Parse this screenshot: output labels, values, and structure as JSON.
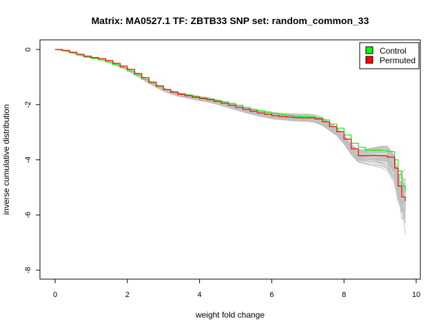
{
  "chart_data": {
    "type": "line",
    "title": "Matrix: MA0527.1 TF: ZBTB33 SNP set: random_common_33",
    "xlabel": "weight fold change",
    "ylabel": "inverse cumulative distribution",
    "xlim": [
      0,
      10
    ],
    "ylim": [
      -8,
      0
    ],
    "x_ticks": [
      0,
      2,
      4,
      6,
      8,
      10
    ],
    "y_ticks": [
      0,
      -2,
      -4,
      -6,
      -8
    ],
    "x_tick_labels": [
      "0",
      "2",
      "4",
      "6",
      "8",
      "10"
    ],
    "y_tick_labels": [
      "0",
      "-2",
      "-4",
      "-6",
      "-8"
    ],
    "grid": false,
    "legend": {
      "position": "top-right",
      "entries": [
        {
          "label": "Control",
          "color": "#00ff00"
        },
        {
          "label": "Permuted",
          "color": "#ff0000"
        }
      ]
    },
    "series": [
      {
        "name": "Control",
        "color": "#00ff00",
        "x": [
          0.0,
          0.2,
          0.4,
          0.6,
          0.8,
          1.0,
          1.2,
          1.4,
          1.6,
          1.8,
          2.0,
          2.2,
          2.4,
          2.6,
          2.8,
          3.0,
          3.2,
          3.4,
          3.6,
          3.8,
          4.0,
          4.2,
          4.4,
          4.6,
          4.8,
          5.0,
          5.2,
          5.4,
          5.6,
          5.8,
          6.0,
          6.2,
          6.4,
          6.6,
          6.8,
          7.0,
          7.2,
          7.4,
          7.6,
          7.8,
          8.0,
          8.2,
          8.4,
          8.6,
          8.8,
          9.0,
          9.2,
          9.4,
          9.5,
          9.6,
          9.7
        ],
        "y": [
          0.0,
          -0.05,
          -0.12,
          -0.2,
          -0.28,
          -0.33,
          -0.38,
          -0.45,
          -0.55,
          -0.66,
          -0.78,
          -0.92,
          -1.08,
          -1.22,
          -1.34,
          -1.45,
          -1.53,
          -1.6,
          -1.65,
          -1.7,
          -1.75,
          -1.8,
          -1.85,
          -1.9,
          -1.95,
          -2.02,
          -2.1,
          -2.17,
          -2.22,
          -2.27,
          -2.32,
          -2.36,
          -2.39,
          -2.42,
          -2.43,
          -2.44,
          -2.48,
          -2.55,
          -2.7,
          -2.85,
          -3.1,
          -3.4,
          -3.55,
          -3.65,
          -3.65,
          -3.65,
          -3.7,
          -4.0,
          -4.4,
          -4.95,
          -5.15
        ]
      },
      {
        "name": "Permuted",
        "color": "#ff0000",
        "x": [
          0.0,
          0.2,
          0.4,
          0.6,
          0.8,
          1.0,
          1.2,
          1.4,
          1.6,
          1.8,
          2.0,
          2.2,
          2.4,
          2.6,
          2.8,
          3.0,
          3.2,
          3.4,
          3.6,
          3.8,
          4.0,
          4.2,
          4.4,
          4.6,
          4.8,
          5.0,
          5.2,
          5.4,
          5.6,
          5.8,
          6.0,
          6.2,
          6.4,
          6.6,
          6.8,
          7.0,
          7.2,
          7.4,
          7.6,
          7.8,
          8.0,
          8.2,
          8.4,
          8.6,
          8.8,
          9.0,
          9.2,
          9.4,
          9.5,
          9.6,
          9.7
        ],
        "y": [
          0.0,
          -0.03,
          -0.1,
          -0.17,
          -0.24,
          -0.29,
          -0.33,
          -0.4,
          -0.5,
          -0.6,
          -0.72,
          -0.87,
          -1.02,
          -1.18,
          -1.32,
          -1.45,
          -1.55,
          -1.63,
          -1.68,
          -1.73,
          -1.78,
          -1.82,
          -1.88,
          -1.95,
          -2.02,
          -2.1,
          -2.17,
          -2.24,
          -2.3,
          -2.35,
          -2.4,
          -2.43,
          -2.45,
          -2.47,
          -2.48,
          -2.48,
          -2.52,
          -2.62,
          -2.8,
          -2.98,
          -3.25,
          -3.6,
          -3.85,
          -3.85,
          -3.85,
          -3.85,
          -3.9,
          -4.3,
          -4.95,
          -5.35,
          -5.5
        ]
      }
    ],
    "background_lines": {
      "color": "#c0c0c0",
      "count": 40
    }
  }
}
